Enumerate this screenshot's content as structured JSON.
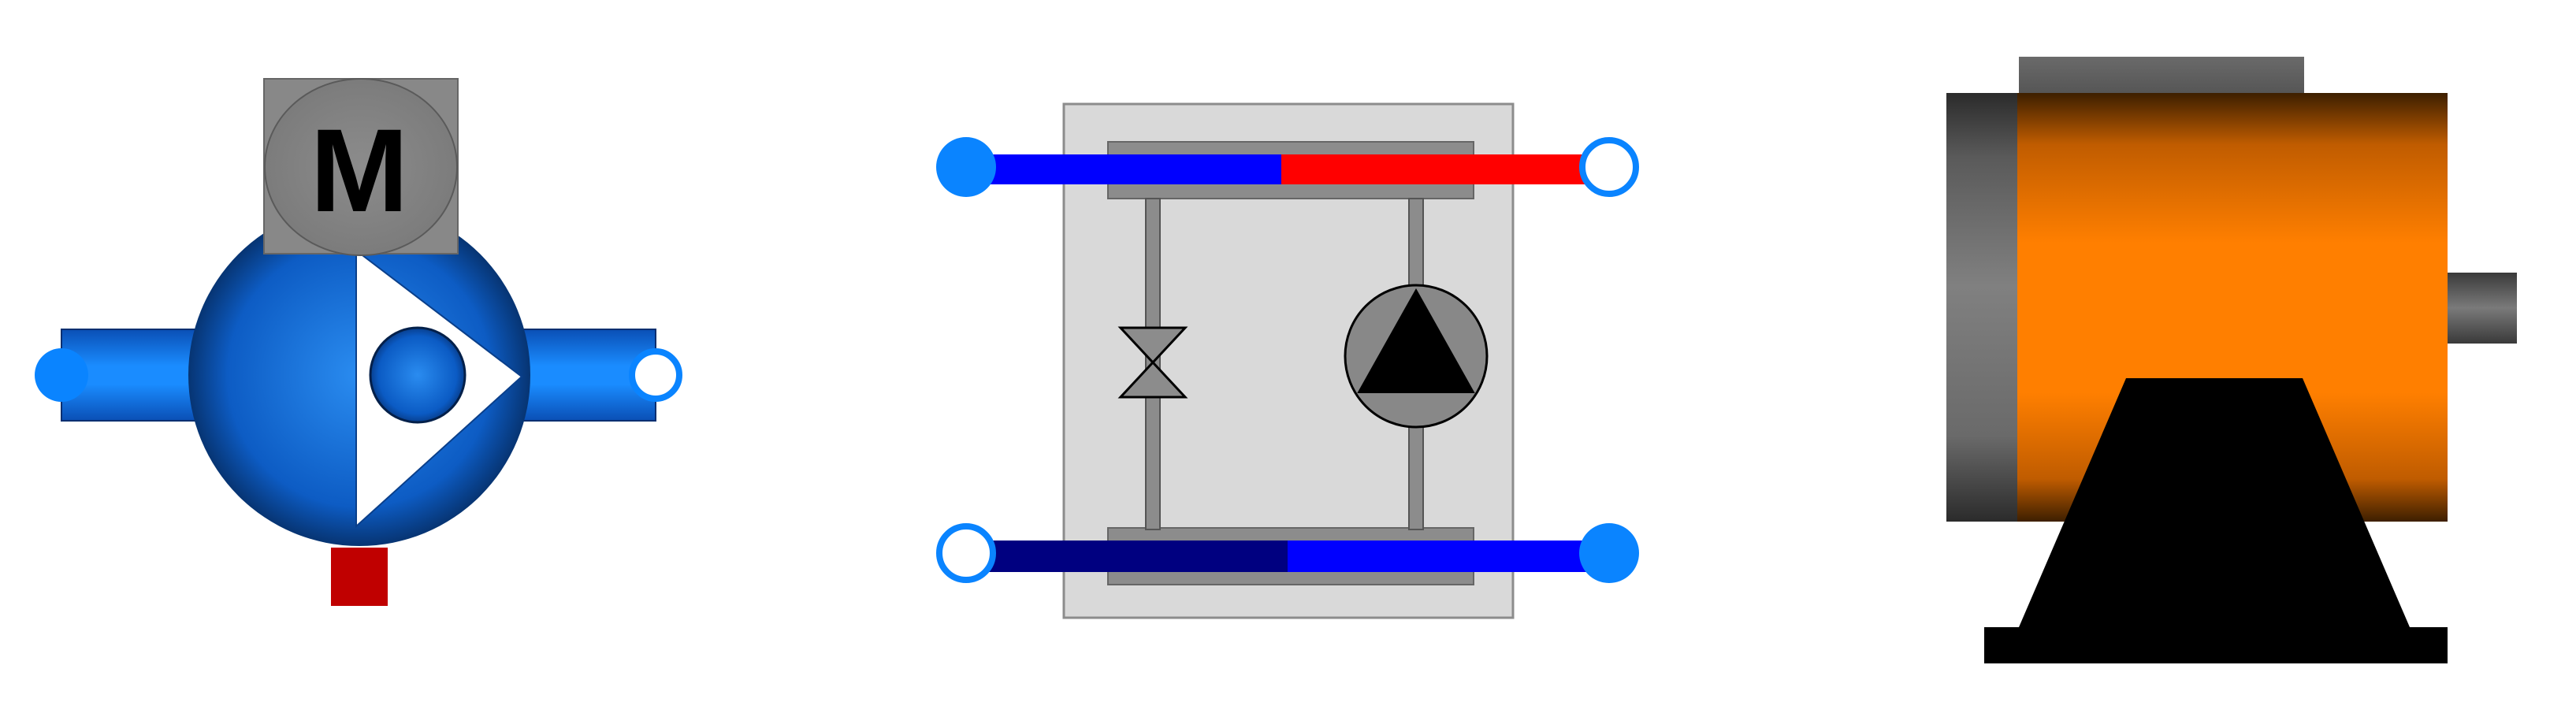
{
  "colors": {
    "background": "#ffffff",
    "pump_body_light": "#1e7fe0",
    "pump_body_dark": "#0a3f8a",
    "pipe_light": "#1a8cff",
    "pipe_dark": "#0b5bd0",
    "port_filled": "#0a84ff",
    "port_outline": "#0a84ff",
    "motor_box": "#888888",
    "motor_letter": "#000000",
    "signal_red": "#c00000",
    "module_panel": "#d9d9d9",
    "module_bar": "#8c8c8c",
    "supply_blue": "#0000ff",
    "supply_red": "#ff0000",
    "return_dark_blue": "#000080",
    "return_blue": "#0000ff",
    "pump_symbol_fill": "#888888",
    "pump_symbol_triangle": "#000000",
    "valve_fill": "#8c8c8c",
    "motor_housing_orange": "#ff7f00",
    "motor_housing_dark": "#5a3000",
    "motor_endcap": "#7f7f7f",
    "motor_base": "#000000"
  },
  "components": {
    "pump": {
      "icon": "pump-icon",
      "motor_label": "M"
    },
    "module": {
      "icon": "hydraulic-module-icon",
      "valve_icon": "throttle-valve-icon",
      "pump_icon": "pump-symbol-icon"
    },
    "machine": {
      "icon": "electric-motor-icon"
    }
  },
  "ports": {
    "pump_inlet": "filled",
    "pump_outlet": "hollow",
    "module_supply_in": "filled",
    "module_supply_out": "hollow",
    "module_return_in": "hollow",
    "module_return_out": "filled"
  }
}
